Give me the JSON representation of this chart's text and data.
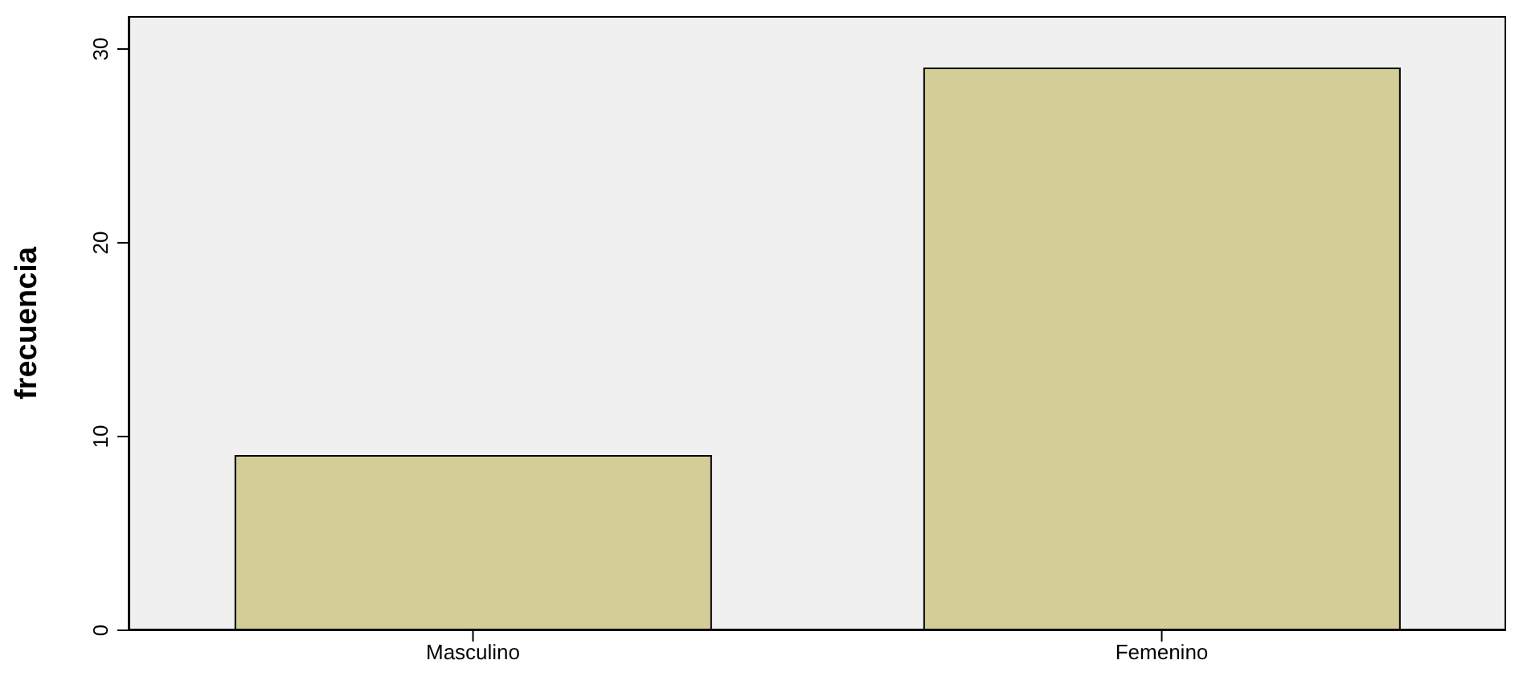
{
  "chart_data": {
    "type": "bar",
    "ylabel": "frecuencia",
    "categories": [
      "Masculino",
      "Femenino"
    ],
    "values": [
      9,
      29
    ],
    "color": "#d3ce97",
    "ylim": [
      0,
      31.7
    ],
    "yticks": [
      0,
      10,
      20,
      30
    ],
    "grid": false
  }
}
